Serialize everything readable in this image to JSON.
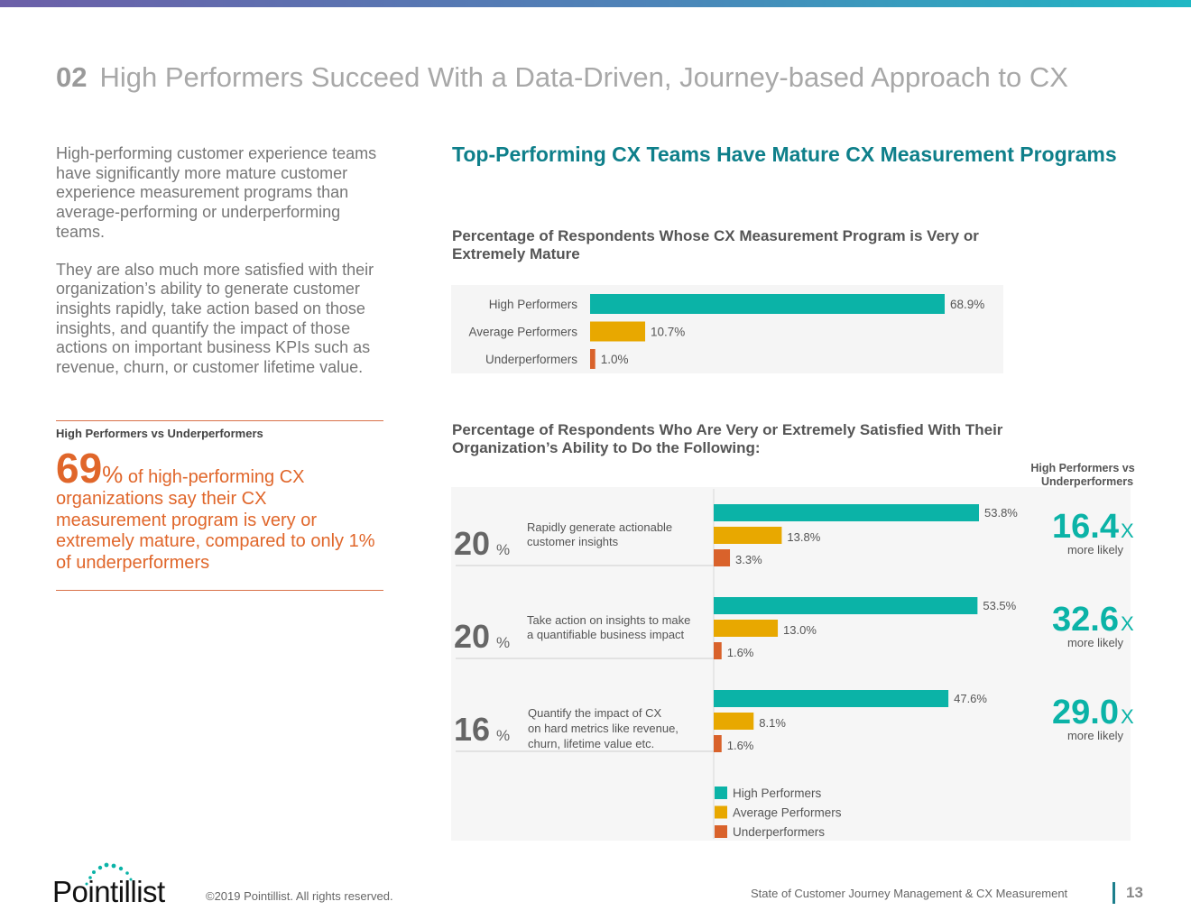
{
  "header": {
    "number": "02",
    "title": "High Performers Succeed With a Data-Driven, Journey-based Approach to CX"
  },
  "intro": {
    "paragraph1": "High-performing customer experience teams have significantly more mature customer experience measurement programs than average-performing or underperforming teams.",
    "paragraph2": "They are also much more satisfied with their organization’s ability to generate customer insights rapidly, take action based on those insights, and quantify the impact of those actions on important business KPIs such as revenue, churn, or customer lifetime value."
  },
  "callout": {
    "heading": "High Performers vs Underperformers",
    "value": "69",
    "unit": "%",
    "text": " of high-performing CX organizations say their CX measurement program is very or extremely mature, compared to only 1% of underperformers"
  },
  "section_title": "Top-Performing CX Teams Have Mature CX Measurement Programs",
  "chart1_title": "Percentage of Respondents Whose CX Measurement Program is Very or Extremely Mature",
  "chart2_title": "Percentage of Respondents Who Are Very or Extremely Satisfied With Their Organization’s Ability to Do the Following:",
  "colors": {
    "high": "#0bb3a7",
    "average": "#e8a800",
    "under": "#d9622b",
    "accent_orange": "#e0662a",
    "teal_title": "#0e7f8a"
  },
  "chart_data": [
    {
      "type": "bar",
      "orientation": "horizontal",
      "title": "Percentage of Respondents Whose CX Measurement Program is Very or Extremely Mature",
      "categories": [
        "High Performers",
        "Average Performers",
        "Underperformers"
      ],
      "values": [
        68.9,
        10.7,
        1.0
      ],
      "labels": [
        "68.9%",
        "10.7%",
        "1.0%"
      ],
      "xlim": [
        0,
        80
      ]
    },
    {
      "type": "bar",
      "orientation": "horizontal",
      "title": "Percentage of Respondents Who Are Very or Extremely Satisfied With Their Organization’s Ability to Do the Following:",
      "side_header": "High Performers vs Underperformers",
      "legend": [
        "High Performers",
        "Average Performers",
        "Underperformers"
      ],
      "legend_position": "bottom",
      "xlim": [
        0,
        80
      ],
      "groups": [
        {
          "stat": "20",
          "stat_unit": "%",
          "label_lines": [
            "Rapidly generate actionable",
            "customer insights"
          ],
          "values": [
            53.8,
            13.8,
            3.3
          ],
          "labels": [
            "53.8%",
            "13.8%",
            "3.3%"
          ],
          "multiplier": "16.4",
          "multiplier_unit": "x",
          "more": "more likely"
        },
        {
          "stat": "20",
          "stat_unit": "%",
          "label_lines": [
            "Take action on insights to make",
            "a quantifiable business impact"
          ],
          "values": [
            53.5,
            13.0,
            1.6
          ],
          "labels": [
            "53.5%",
            "13.0%",
            "1.6%"
          ],
          "multiplier": "32.6",
          "multiplier_unit": "x",
          "more": "more likely"
        },
        {
          "stat": "16",
          "stat_unit": "%",
          "label_lines": [
            "Quantify the impact of CX",
            "on hard metrics like revenue,",
            "churn,  lifetime value etc."
          ],
          "values": [
            47.6,
            8.1,
            1.6
          ],
          "labels": [
            "47.6%",
            "8.1%",
            "1.6%"
          ],
          "multiplier": "29.0",
          "multiplier_unit": "x",
          "more": "more likely"
        }
      ]
    }
  ],
  "footer": {
    "logo": "Pointillist",
    "copyright": "©2019 Pointillist. All rights reserved.",
    "report": "State of Customer Journey Management & CX Measurement",
    "page": "13"
  }
}
